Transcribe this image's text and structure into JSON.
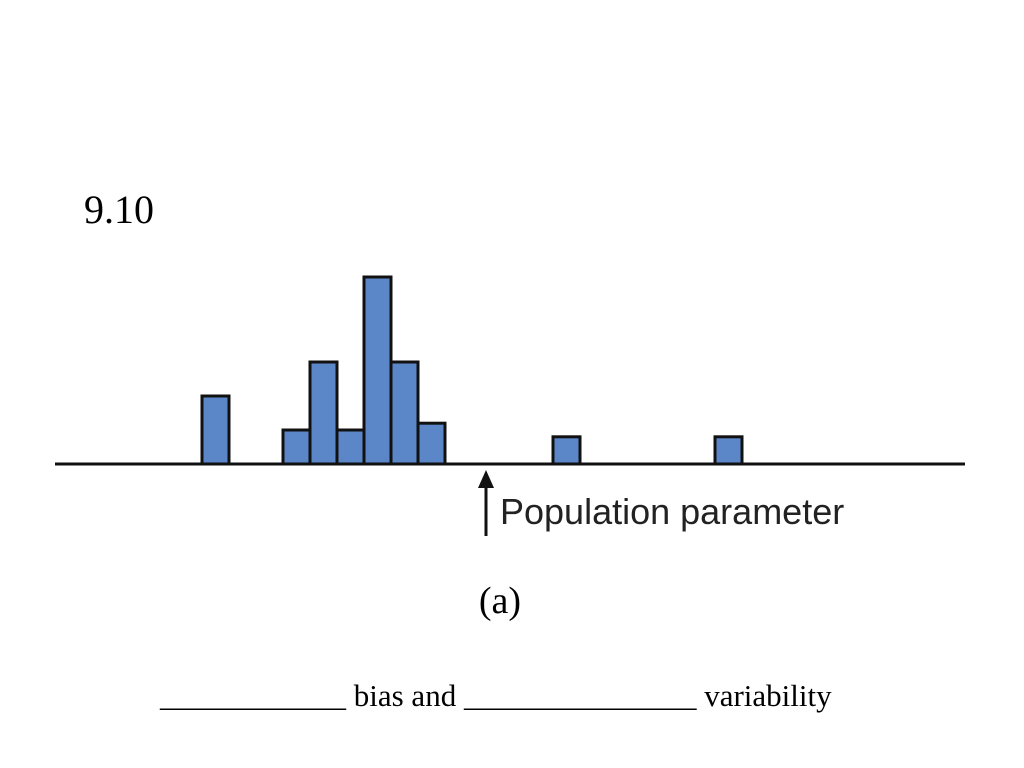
{
  "slide": {
    "number": "9.10",
    "figure_label": "(a)",
    "prompt": {
      "blank1": "____________",
      "text1": " bias and ",
      "blank2": "_______________",
      "text2": " variability"
    }
  },
  "colors": {
    "bar_fill": "#5b87c9",
    "bar_stroke": "#111111",
    "axis": "#111111",
    "text": "#000000"
  },
  "chart_data": {
    "type": "bar",
    "description": "histogram of sample statistics relative to population parameter",
    "annotation": "Population parameter",
    "bars": [
      {
        "x": 1,
        "height": 2
      },
      {
        "x": 4,
        "height": 1
      },
      {
        "x": 5,
        "height": 3
      },
      {
        "x": 6,
        "height": 1
      },
      {
        "x": 7,
        "height": 5.5
      },
      {
        "x": 8,
        "height": 3
      },
      {
        "x": 9,
        "height": 1.2
      },
      {
        "x": 14,
        "height": 0.8
      },
      {
        "x": 20,
        "height": 0.8
      }
    ],
    "parameter_x": 11.5,
    "xlim": [
      -4.5,
      29
    ],
    "ylim": [
      0,
      6
    ]
  }
}
